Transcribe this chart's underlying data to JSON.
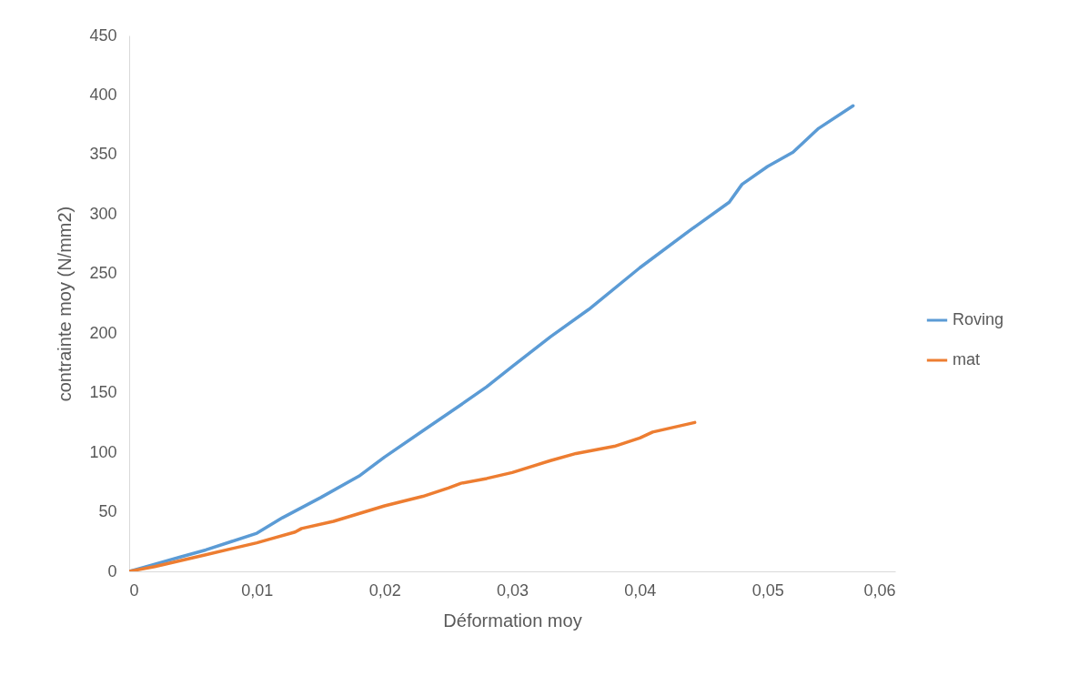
{
  "chart_data": {
    "type": "line",
    "xlabel": "Déformation moy",
    "ylabel": "contrainte moy (N/mm2)",
    "xlim": [
      0,
      0.06
    ],
    "xticks": [
      {
        "value": 0,
        "label": "0"
      },
      {
        "value": 0.01,
        "label": "0,01"
      },
      {
        "value": 0.02,
        "label": "0,02"
      },
      {
        "value": 0.03,
        "label": "0,03"
      },
      {
        "value": 0.04,
        "label": "0,04"
      },
      {
        "value": 0.05,
        "label": "0,05"
      },
      {
        "value": 0.06,
        "label": "0,06"
      }
    ],
    "ylim": [
      0,
      450
    ],
    "yticks": [
      0,
      50,
      100,
      150,
      200,
      250,
      300,
      350,
      400,
      450
    ],
    "grid": false,
    "legend": "right",
    "marker": "none",
    "line_style": "solid",
    "series": [
      {
        "name": "Roving",
        "color": "#5b9bd5",
        "x": [
          0,
          0.002,
          0.004,
          0.006,
          0.008,
          0.01,
          0.012,
          0.015,
          0.018,
          0.02,
          0.023,
          0.026,
          0.028,
          0.03,
          0.033,
          0.036,
          0.04,
          0.044,
          0.047,
          0.048,
          0.05,
          0.052,
          0.054,
          0.0567
        ],
        "values": [
          0,
          6,
          12,
          18,
          25,
          32,
          45,
          62,
          80,
          96,
          118,
          140,
          155,
          172,
          197,
          220,
          255,
          287,
          310,
          325,
          340,
          352,
          372,
          391
        ]
      },
      {
        "name": "mat",
        "color": "#ed7d31",
        "x": [
          0,
          0.002,
          0.004,
          0.006,
          0.008,
          0.01,
          0.011,
          0.013,
          0.0135,
          0.016,
          0.02,
          0.023,
          0.025,
          0.026,
          0.028,
          0.03,
          0.033,
          0.035,
          0.038,
          0.04,
          0.041,
          0.0443
        ],
        "values": [
          0,
          4,
          9,
          14,
          19,
          24,
          27,
          33,
          36,
          42,
          55,
          63,
          70,
          74,
          78,
          83,
          93,
          99,
          105,
          112,
          117,
          125
        ]
      }
    ]
  }
}
